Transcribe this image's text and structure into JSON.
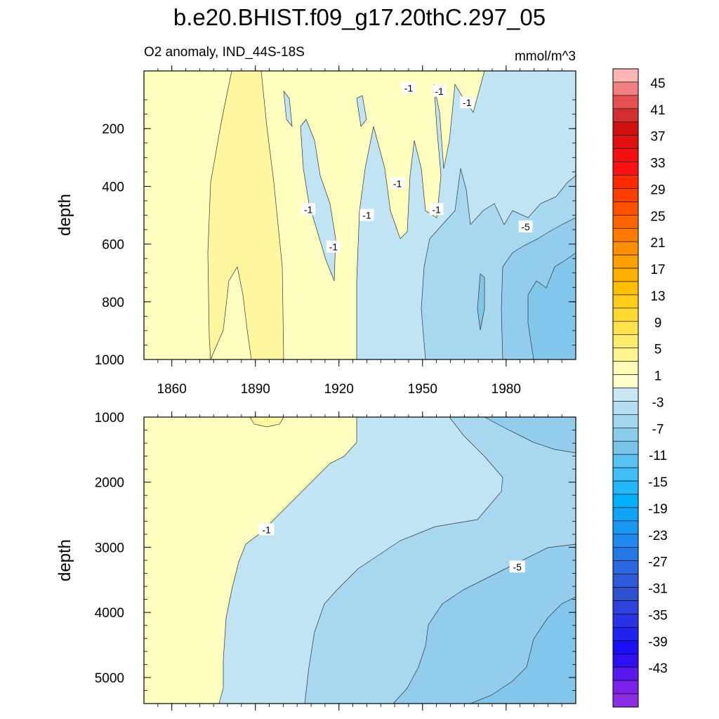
{
  "title": "b.e20.BHIST.f09_g17.20thC.297_05",
  "subtitle_left": "O2 anomaly, IND_44S-18S",
  "subtitle_right": "mmol/m^3",
  "colors": {
    "positive_1": "#ffffc0",
    "positive_3": "#fff6a0",
    "negative_1": "#c0e4f4",
    "negative_3": "#a8d8f0",
    "negative_5": "#92cdee",
    "negative_7": "#82c6ec",
    "line": "#333333"
  },
  "chart_data": [
    {
      "type": "heatmap",
      "panel": "upper",
      "ylabel": "depth",
      "xlabel": "",
      "xlim": [
        1850,
        2005
      ],
      "ylim": [
        1000,
        0
      ],
      "x_ticks": [
        1860,
        1890,
        1920,
        1950,
        1980
      ],
      "x_tick_labels": [
        "1860",
        "1890",
        "1920",
        "1950",
        "1980"
      ],
      "y_ticks": [
        200,
        400,
        600,
        800,
        1000
      ],
      "y_tick_labels": [
        "200",
        "400",
        "600",
        "800",
        "1000"
      ],
      "contour_labels": [
        {
          "text": "-1",
          "x": 1909,
          "y": 480
        },
        {
          "text": "-1",
          "x": 1918,
          "y": 610
        },
        {
          "text": "-1",
          "x": 1930,
          "y": 500
        },
        {
          "text": "-1",
          "x": 1941,
          "y": 390
        },
        {
          "text": "-1",
          "x": 1945,
          "y": 60
        },
        {
          "text": "-1",
          "x": 1956,
          "y": 70
        },
        {
          "text": "-1",
          "x": 1966,
          "y": 110
        },
        {
          "text": "-1",
          "x": 1955,
          "y": 480
        },
        {
          "text": "-5",
          "x": 1987,
          "y": 540
        }
      ]
    },
    {
      "type": "heatmap",
      "panel": "lower",
      "ylabel": "depth",
      "xlabel": "",
      "xlim": [
        1850,
        2005
      ],
      "ylim": [
        5400,
        1000
      ],
      "y_ticks": [
        1000,
        2000,
        3000,
        4000,
        5000
      ],
      "y_tick_labels": [
        "1000",
        "2000",
        "3000",
        "4000",
        "5000"
      ],
      "contour_labels": [
        {
          "text": "-1",
          "x": 1894,
          "y": 2730
        },
        {
          "text": "-5",
          "x": 1984,
          "y": 3300
        }
      ]
    }
  ],
  "colorbar": {
    "tick_labels": [
      "45",
      "41",
      "37",
      "33",
      "29",
      "25",
      "21",
      "17",
      "13",
      "9",
      "5",
      "1",
      "-3",
      "-7",
      "-11",
      "-15",
      "-19",
      "-23",
      "-27",
      "-31",
      "-35",
      "-39",
      "-43"
    ],
    "colors": [
      "#fdb4b4",
      "#f28080",
      "#e65050",
      "#d23030",
      "#d21010",
      "#e01010",
      "#f21010",
      "#ff1010",
      "#ff2a00",
      "#ff3e00",
      "#ff5000",
      "#ff6400",
      "#ff7a00",
      "#ff8f00",
      "#ffa000",
      "#ffaf00",
      "#ffbf00",
      "#ffcd18",
      "#ffd830",
      "#ffe24c",
      "#ffec6c",
      "#fff490",
      "#fffab8",
      "#ffffcc",
      "#c8e6f4",
      "#b4def2",
      "#a0d6f0",
      "#8ccdee",
      "#78c5ec",
      "#5cc2f2",
      "#40bef6",
      "#20b8fa",
      "#00b0fa",
      "#10a4f6",
      "#1896f2",
      "#2088ee",
      "#2478e6",
      "#2a68e0",
      "#2c5ad8",
      "#3050d2",
      "#2e42dc",
      "#2a32e6",
      "#2222f0",
      "#1a10f6",
      "#3010f0",
      "#5818ee",
      "#7a22ea",
      "#8b2ee6"
    ]
  }
}
